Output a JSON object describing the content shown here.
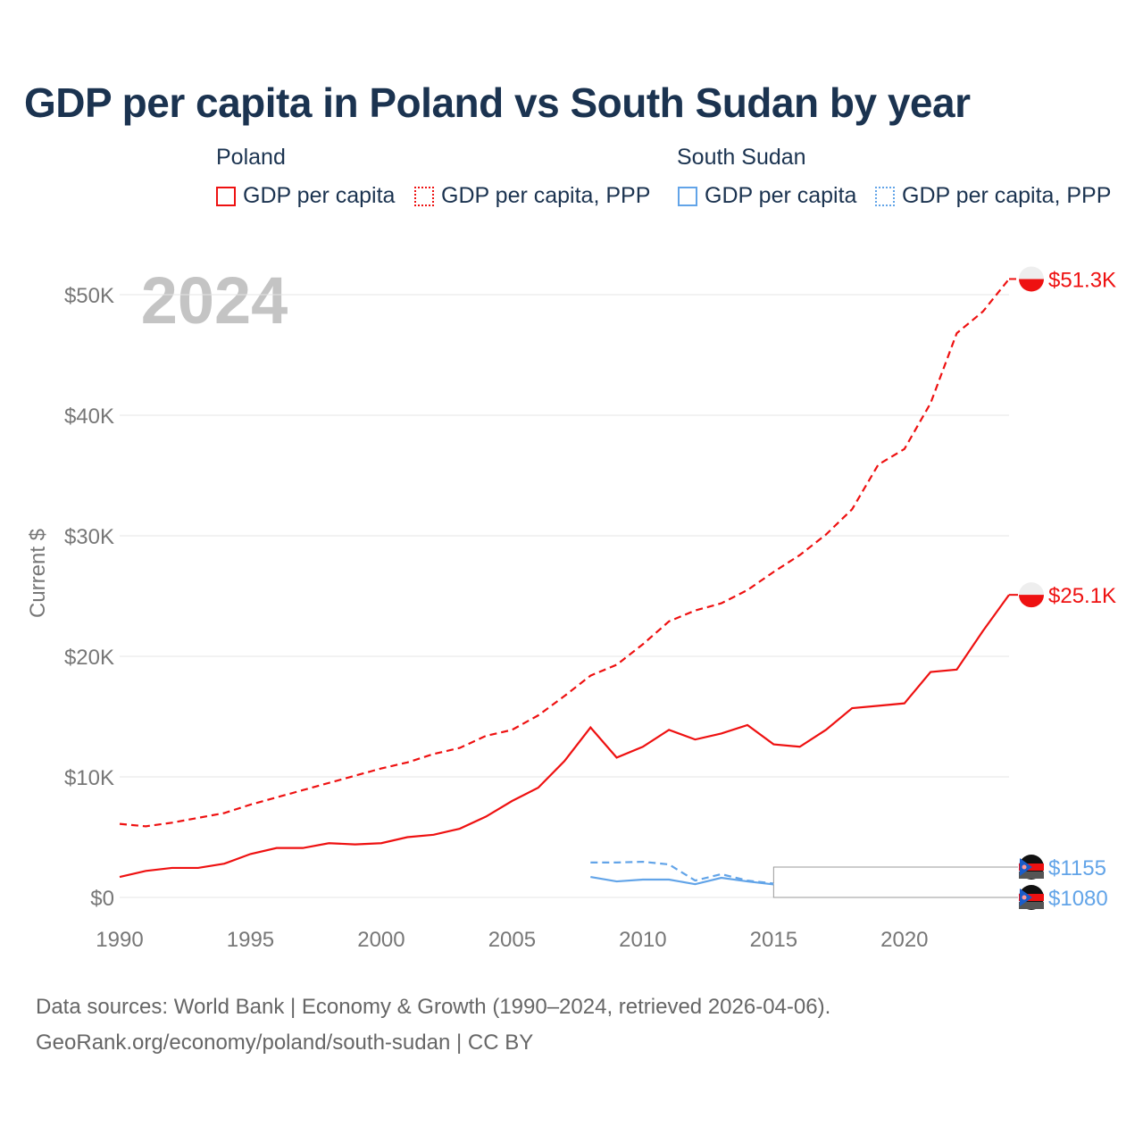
{
  "title": "GDP per capita in Poland vs South Sudan by year",
  "legend": {
    "groups": [
      {
        "name": "Poland",
        "items": [
          "GDP per capita",
          "GDP per capita, PPP"
        ]
      },
      {
        "name": "South Sudan",
        "items": [
          "GDP per capita",
          "GDP per capita, PPP"
        ]
      }
    ]
  },
  "colors": {
    "poland": "#ee1111",
    "south_sudan": "#62a4e8"
  },
  "year_watermark": "2024",
  "footer": {
    "line1": "Data sources: World Bank | Economy & Growth (1990–2024, retrieved 2026-04-06).",
    "line2": "GeoRank.org/economy/poland/south-sudan | CC BY"
  },
  "chart_data": {
    "type": "line",
    "title": "GDP per capita in Poland vs South Sudan by year",
    "xlabel": "",
    "ylabel": "Current $",
    "xlim": [
      1990,
      2024
    ],
    "ylim": [
      0,
      50000
    ],
    "x_ticks": [
      "1990",
      "1995",
      "2000",
      "2005",
      "2010",
      "2015",
      "2020"
    ],
    "y_ticks": [
      "$0",
      "$10K",
      "$20K",
      "$30K",
      "$40K",
      "$50K"
    ],
    "y_tick_values": [
      0,
      10000,
      20000,
      30000,
      40000,
      50000
    ],
    "grid": true,
    "legend_position": "top",
    "series": [
      {
        "name": "Poland GDP per capita",
        "country": "poland",
        "dashed": false,
        "start": 1990,
        "end_label": "$25.1K",
        "values": [
          1700,
          2200,
          2450,
          2450,
          2800,
          3600,
          4100,
          4100,
          4500,
          4400,
          4500,
          5000,
          5200,
          5700,
          6700,
          8000,
          9100,
          11300,
          14100,
          11600,
          12500,
          13900,
          13100,
          13600,
          14300,
          12700,
          12500,
          13900,
          15700,
          15900,
          16100,
          18700,
          18900,
          22100,
          25100
        ]
      },
      {
        "name": "Poland GDP per capita, PPP",
        "country": "poland",
        "dashed": true,
        "start": 1990,
        "end_label": "$51.3K",
        "values": [
          6100,
          5900,
          6200,
          6600,
          7000,
          7700,
          8300,
          8900,
          9500,
          10100,
          10700,
          11200,
          11900,
          12400,
          13400,
          13900,
          15100,
          16700,
          18400,
          19300,
          21000,
          22900,
          23800,
          24400,
          25500,
          27000,
          28400,
          30100,
          32200,
          35900,
          37200,
          41000,
          46800,
          48600,
          51300
        ]
      },
      {
        "name": "South Sudan GDP per capita",
        "country": "south_sudan",
        "dashed": false,
        "start": 2008,
        "end_label": "$1080",
        "values": [
          1700,
          1330,
          1480,
          1480,
          1100,
          1630,
          1330,
          1080
        ]
      },
      {
        "name": "South Sudan GDP per capita, PPP",
        "country": "south_sudan",
        "dashed": true,
        "start": 2008,
        "end_label": "$1155",
        "values": [
          2900,
          2900,
          2960,
          2740,
          1400,
          1930,
          1400,
          1155
        ]
      }
    ]
  }
}
